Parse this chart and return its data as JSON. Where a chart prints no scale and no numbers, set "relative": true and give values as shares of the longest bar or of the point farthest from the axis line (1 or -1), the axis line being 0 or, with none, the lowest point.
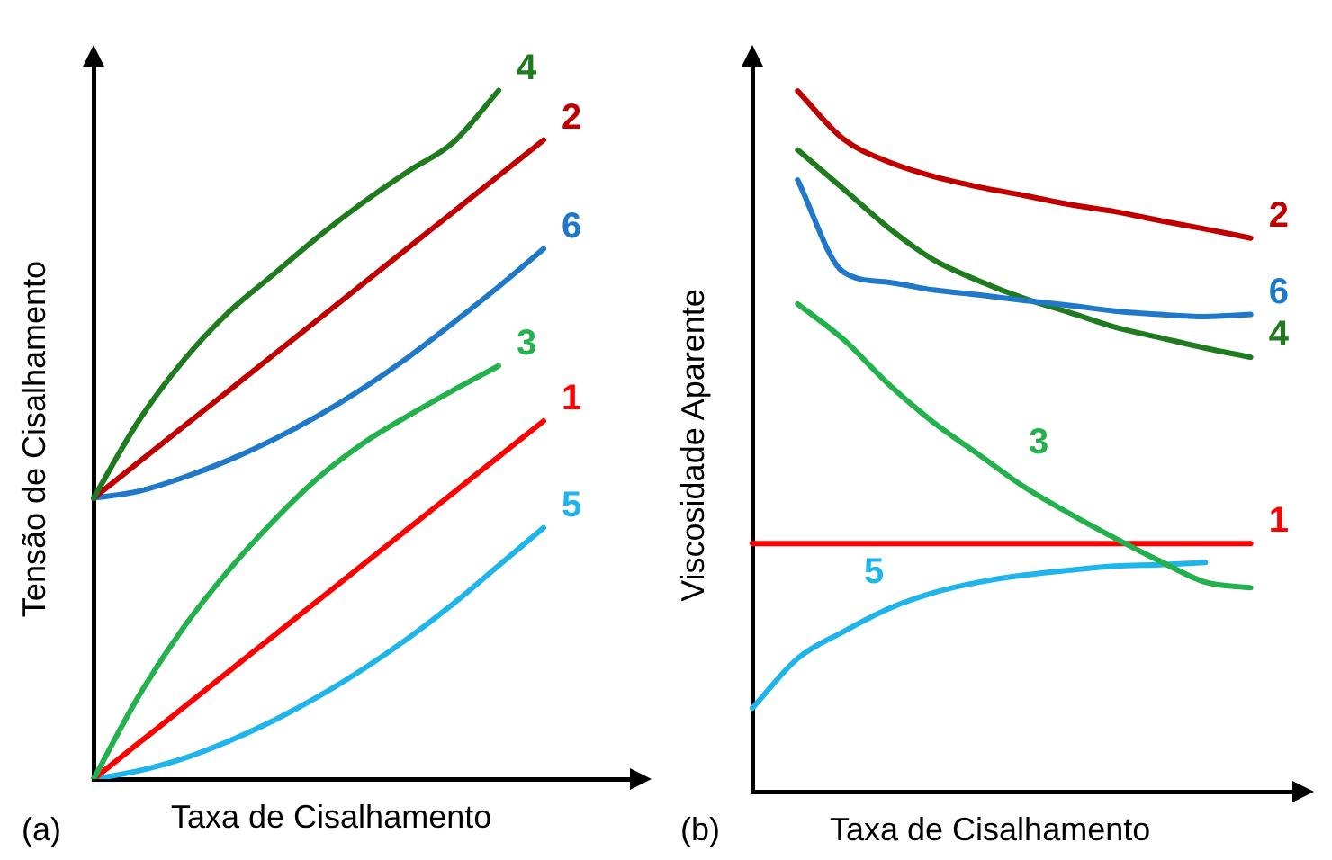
{
  "chart_data": [
    {
      "type": "line",
      "relative": true,
      "xlabel": "Taxa de Cisalhamento",
      "ylabel": "Tensão de Cisalhamento",
      "annotations": [
        "(a)"
      ],
      "categories": [
        null,
        null,
        null,
        null,
        null,
        null,
        null,
        null,
        null,
        null,
        null,
        null,
        null
      ],
      "series": [
        {
          "name": "4",
          "color": "#1e7b1e",
          "values": [
            0.408,
            0.52,
            0.608,
            0.678,
            0.733,
            0.788,
            0.838,
            0.883,
            0.925,
            1,
            null,
            null,
            null
          ]
        },
        {
          "name": "2",
          "color": "#c00000",
          "values": [
            0.408,
            0.46,
            0.512,
            0.564,
            0.616,
            0.668,
            0.72,
            0.772,
            0.824,
            0.876,
            0.928,
            null,
            null
          ]
        },
        {
          "name": "6",
          "color": "#1f78c8",
          "values": [
            0.408,
            0.418,
            0.438,
            0.463,
            0.493,
            0.528,
            0.568,
            0.613,
            0.663,
            0.715,
            0.77,
            null,
            null
          ]
        },
        {
          "name": "3",
          "color": "#22b14c",
          "values": [
            0,
            0.12,
            0.22,
            0.303,
            0.375,
            0.438,
            0.488,
            0.528,
            0.565,
            0.6,
            null,
            null,
            null
          ]
        },
        {
          "name": "1",
          "color": "#ff0000",
          "values": [
            0,
            0.052,
            0.104,
            0.156,
            0.208,
            0.26,
            0.312,
            0.364,
            0.416,
            0.468,
            0.52,
            null,
            null
          ]
        },
        {
          "name": "5",
          "color": "#1fb4ea",
          "values": [
            0,
            0.012,
            0.03,
            0.055,
            0.085,
            0.12,
            0.16,
            0.205,
            0.255,
            0.31,
            0.365,
            null,
            null
          ]
        }
      ]
    },
    {
      "type": "line",
      "relative": true,
      "xlabel": "Taxa de Cisalhamento",
      "ylabel": "Viscosidade Aparente",
      "annotations": [
        "(b)"
      ],
      "categories": [
        null,
        null,
        null,
        null,
        null,
        null,
        null,
        null,
        null,
        null,
        null,
        null,
        null
      ],
      "series": [
        {
          "name": "2",
          "color": "#c00000",
          "values": [
            null,
            1,
            0.932,
            0.899,
            0.878,
            0.863,
            0.851,
            0.838,
            0.828,
            0.815,
            0.803,
            0.79,
            null
          ]
        },
        {
          "name": "6",
          "color": "#1f78c8",
          "values": [
            null,
            0.873,
            0.742,
            0.727,
            0.716,
            0.709,
            0.701,
            0.694,
            0.686,
            0.681,
            0.678,
            0.681,
            null
          ]
        },
        {
          "name": "4",
          "color": "#1e7b1e",
          "values": [
            null,
            0.916,
            0.861,
            0.805,
            0.759,
            0.729,
            0.704,
            0.684,
            0.663,
            0.648,
            0.633,
            0.62,
            null
          ]
        },
        {
          "name": "3",
          "color": "#22b14c",
          "values": [
            null,
            0.696,
            0.646,
            0.582,
            0.527,
            0.481,
            0.435,
            0.397,
            0.362,
            0.329,
            0.299,
            0.291,
            null
          ]
        },
        {
          "name": "1",
          "color": "#ff0000",
          "values": [
            0.354,
            0.354,
            0.354,
            0.354,
            0.354,
            0.354,
            0.354,
            0.354,
            0.354,
            0.354,
            0.354,
            0.354,
            null
          ]
        },
        {
          "name": "5",
          "color": "#1fb4ea",
          "values": [
            0.119,
            0.19,
            0.228,
            0.261,
            0.284,
            0.299,
            0.309,
            0.316,
            0.322,
            0.324,
            0.327,
            null,
            null
          ]
        }
      ]
    }
  ]
}
